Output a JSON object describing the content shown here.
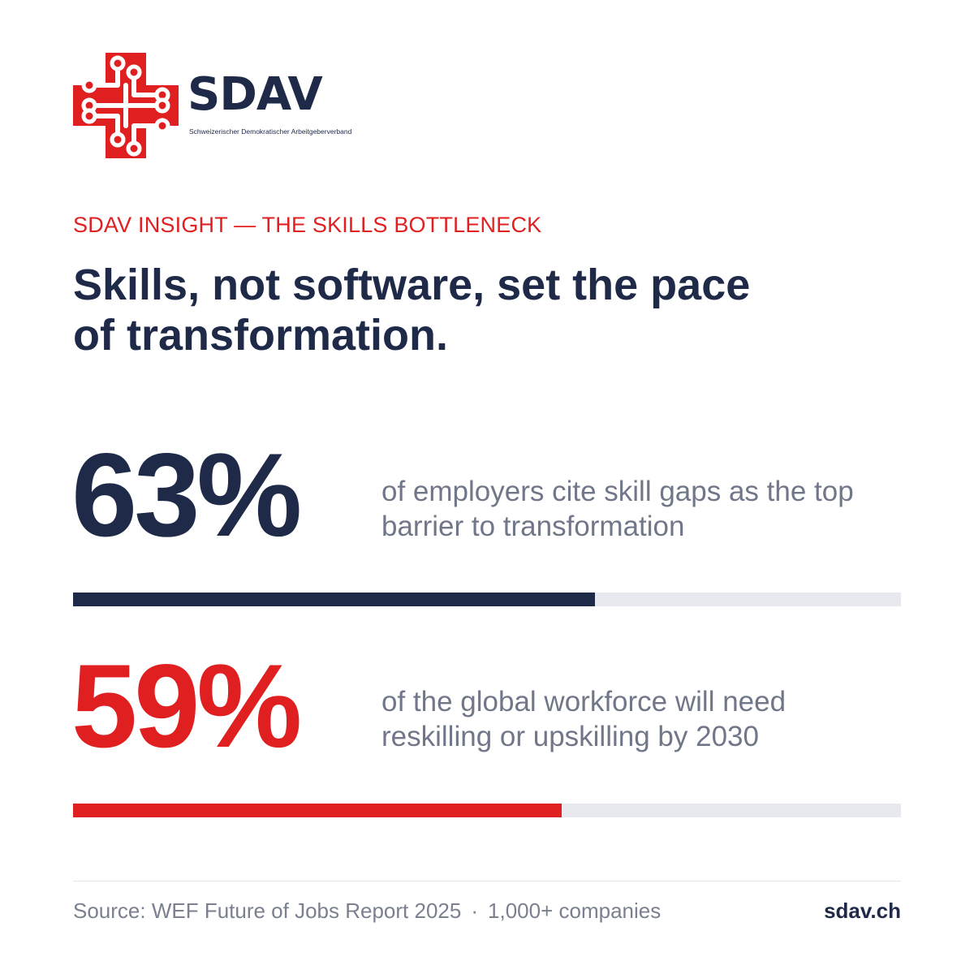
{
  "brand": {
    "name": "SDAV",
    "tagline": "Schweizerischer Demokratischer Arbeitgeberverband",
    "logo_icon": "swiss-cross-circuit-icon"
  },
  "eyebrow": "SDAV INSIGHT — THE SKILLS BOTTLENECK",
  "headline": "Skills, not software, set the pace of transformation.",
  "stats": [
    {
      "value": "63%",
      "fill_percent": 63,
      "description": "of employers cite skill gaps as the top barrier to transformation"
    },
    {
      "value": "59%",
      "fill_percent": 59,
      "description": "of the global workforce will need reskilling or upskilling by 2030"
    }
  ],
  "footer": {
    "source": "Source: WEF Future of Jobs Report 2025",
    "separator": "·",
    "companies": "1,000+ companies",
    "url": "sdav.ch"
  },
  "colors": {
    "navy": "#1e2a48",
    "red": "#e02020",
    "grey_text": "#707789",
    "track": "#e8e9ee"
  }
}
